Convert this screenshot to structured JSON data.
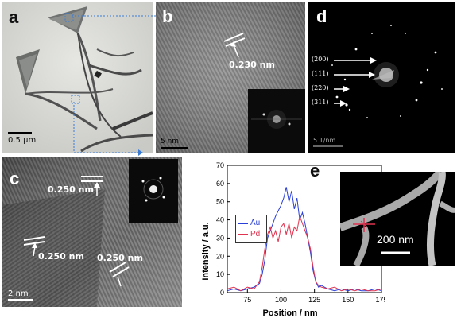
{
  "figure": {
    "panels": {
      "a": {
        "label": "a",
        "scale_bar": "0.5 μm"
      },
      "b": {
        "label": "b",
        "lattice_spacing": "0.230 nm",
        "scale_bar": "5 nm"
      },
      "c": {
        "label": "c",
        "lattice_spacings": [
          "0.250 nm",
          "0.250 nm",
          "0.250 nm"
        ],
        "scale_bar": "2 nm"
      },
      "d": {
        "label": "d",
        "rings": [
          "(200)",
          "(111)",
          "(220)",
          "(311)"
        ],
        "scale_bar": "5 1/nm"
      },
      "e": {
        "label": "e",
        "inset_scale_bar": "200 nm"
      }
    },
    "colors": {
      "au": "#2a3fd8",
      "pd": "#e0334f"
    }
  },
  "chart_data": {
    "type": "line",
    "xlabel": "Position / nm",
    "ylabel": "Intensity / a.u.",
    "xlim": [
      60,
      175
    ],
    "ylim": [
      0,
      70
    ],
    "xticks": [
      75,
      100,
      125,
      150,
      175
    ],
    "yticks": [
      0,
      10,
      20,
      30,
      40,
      50,
      60,
      70
    ],
    "legend_position": "left",
    "series": [
      {
        "name": "Au",
        "color": "#2a3fd8",
        "x": [
          60,
          65,
          70,
          75,
          80,
          84,
          86,
          88,
          90,
          92,
          94,
          96,
          98,
          100,
          102,
          104,
          106,
          108,
          110,
          112,
          114,
          116,
          118,
          120,
          122,
          124,
          126,
          128,
          130,
          135,
          140,
          145,
          150,
          155,
          160,
          165,
          170,
          175
        ],
        "y": [
          1,
          2,
          1,
          2,
          3,
          5,
          10,
          18,
          30,
          34,
          38,
          42,
          45,
          48,
          52,
          58,
          50,
          56,
          46,
          52,
          40,
          44,
          38,
          30,
          22,
          12,
          6,
          3,
          4,
          2,
          1,
          2,
          1,
          2,
          1,
          1,
          2,
          1
        ]
      },
      {
        "name": "Pd",
        "color": "#e0334f",
        "x": [
          60,
          65,
          70,
          75,
          80,
          84,
          86,
          88,
          90,
          92,
          94,
          96,
          98,
          100,
          102,
          104,
          106,
          108,
          110,
          112,
          114,
          116,
          118,
          120,
          122,
          124,
          126,
          128,
          130,
          135,
          140,
          145,
          150,
          155,
          160,
          165,
          170,
          175
        ],
        "y": [
          2,
          3,
          1,
          3,
          2,
          6,
          14,
          24,
          32,
          36,
          30,
          34,
          28,
          36,
          38,
          32,
          38,
          30,
          36,
          34,
          42,
          38,
          34,
          30,
          24,
          14,
          6,
          4,
          3,
          2,
          3,
          1,
          2,
          1,
          2,
          1,
          1,
          2
        ]
      }
    ]
  }
}
